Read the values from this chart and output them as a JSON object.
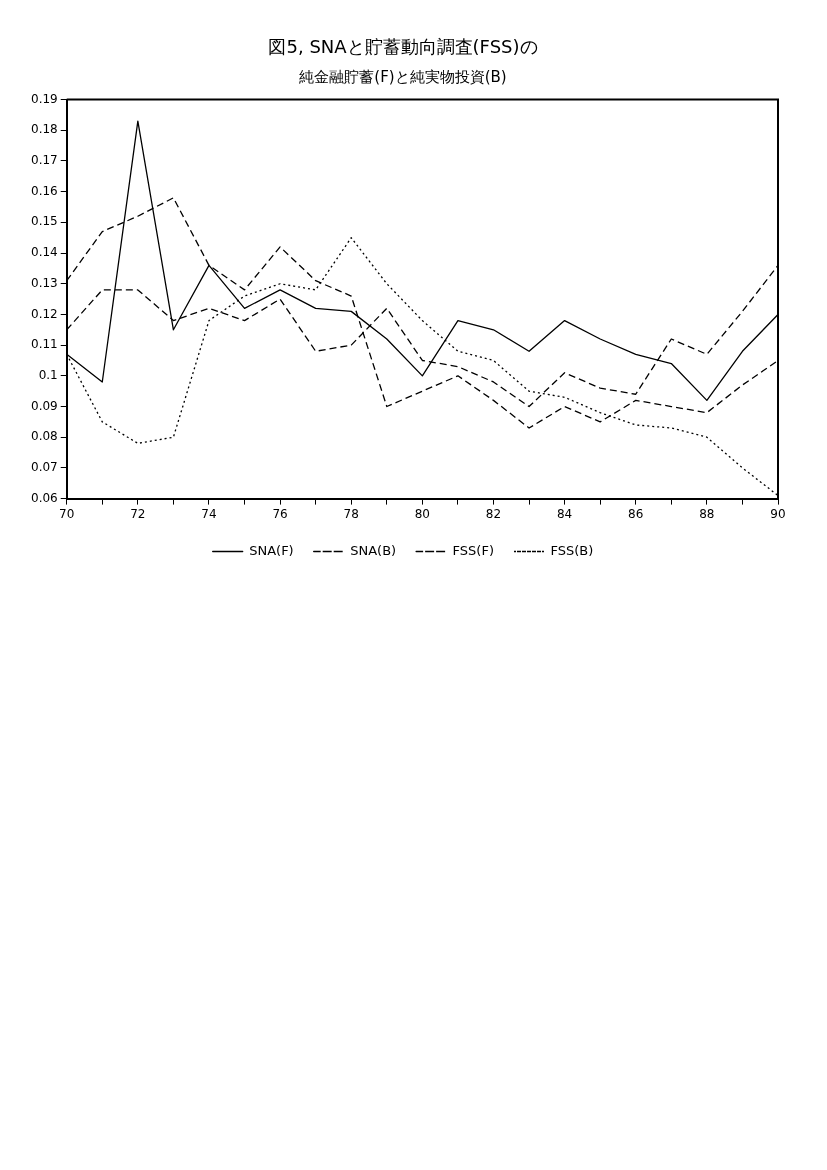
{
  "chart_data": {
    "type": "line",
    "title": "図5, SNAと貯蓄動向調査(FSS)の",
    "subtitle": "純金融貯蓄(F)と純実物投資(B)",
    "x": [
      70,
      71,
      72,
      73,
      74,
      75,
      76,
      77,
      78,
      79,
      80,
      81,
      82,
      83,
      84,
      85,
      86,
      87,
      88,
      89,
      90
    ],
    "series": [
      {
        "name": "SNA(F)",
        "color": "#000000",
        "line_style": "solid",
        "values": [
          0.107,
          0.098,
          0.183,
          0.115,
          0.136,
          0.122,
          0.128,
          0.122,
          0.121,
          0.112,
          0.1,
          0.118,
          0.115,
          0.108,
          0.118,
          0.112,
          0.107,
          0.104,
          0.092,
          0.108,
          0.12
        ]
      },
      {
        "name": "SNA(B)",
        "color": "#000000",
        "line_style": "dashed",
        "values": [
          0.115,
          0.128,
          0.128,
          0.118,
          0.122,
          0.118,
          0.125,
          0.108,
          0.11,
          0.122,
          0.105,
          0.103,
          0.098,
          0.09,
          0.101,
          0.096,
          0.094,
          0.112,
          0.107,
          0.121,
          0.136
        ]
      },
      {
        "name": "FSS(F)",
        "color": "#000000",
        "line_style": "dashed",
        "values": [
          0.131,
          0.147,
          0.152,
          0.158,
          0.136,
          0.128,
          0.142,
          0.131,
          0.126,
          0.09,
          0.095,
          0.1,
          0.092,
          0.083,
          0.09,
          0.085,
          0.092,
          0.09,
          0.088,
          0.097,
          0.105
        ]
      },
      {
        "name": "FSS(B)",
        "color": "#000000",
        "line_style": "dotted",
        "values": [
          0.107,
          0.085,
          0.078,
          0.08,
          0.118,
          0.126,
          0.13,
          0.128,
          0.145,
          0.13,
          0.118,
          0.108,
          0.105,
          0.095,
          0.093,
          0.088,
          0.084,
          0.083,
          0.08,
          0.07,
          0.061
        ]
      }
    ],
    "xlim": [
      70,
      90
    ],
    "xticks": [
      70,
      {
        "value": 71,
        "label": null
      },
      72,
      {
        "value": 73,
        "label": null
      },
      74,
      {
        "value": 75,
        "label": null
      },
      76,
      {
        "value": 77,
        "label": null
      },
      78,
      {
        "value": 79,
        "label": null
      },
      80,
      {
        "value": 81,
        "label": null
      },
      82,
      {
        "value": 83,
        "label": null
      },
      84,
      {
        "value": 85,
        "label": null
      },
      86,
      {
        "value": 87,
        "label": null
      },
      88,
      {
        "value": 89,
        "label": null
      },
      90
    ],
    "ylim": [
      0.06,
      0.19
    ],
    "yticks": [
      0.06,
      0.07,
      0.08,
      0.09,
      0.1,
      0.11,
      0.12,
      0.13,
      0.14,
      0.15,
      0.16,
      0.17,
      0.18,
      0.19
    ],
    "grid": false,
    "legend": "bottom",
    "marker": "none"
  }
}
